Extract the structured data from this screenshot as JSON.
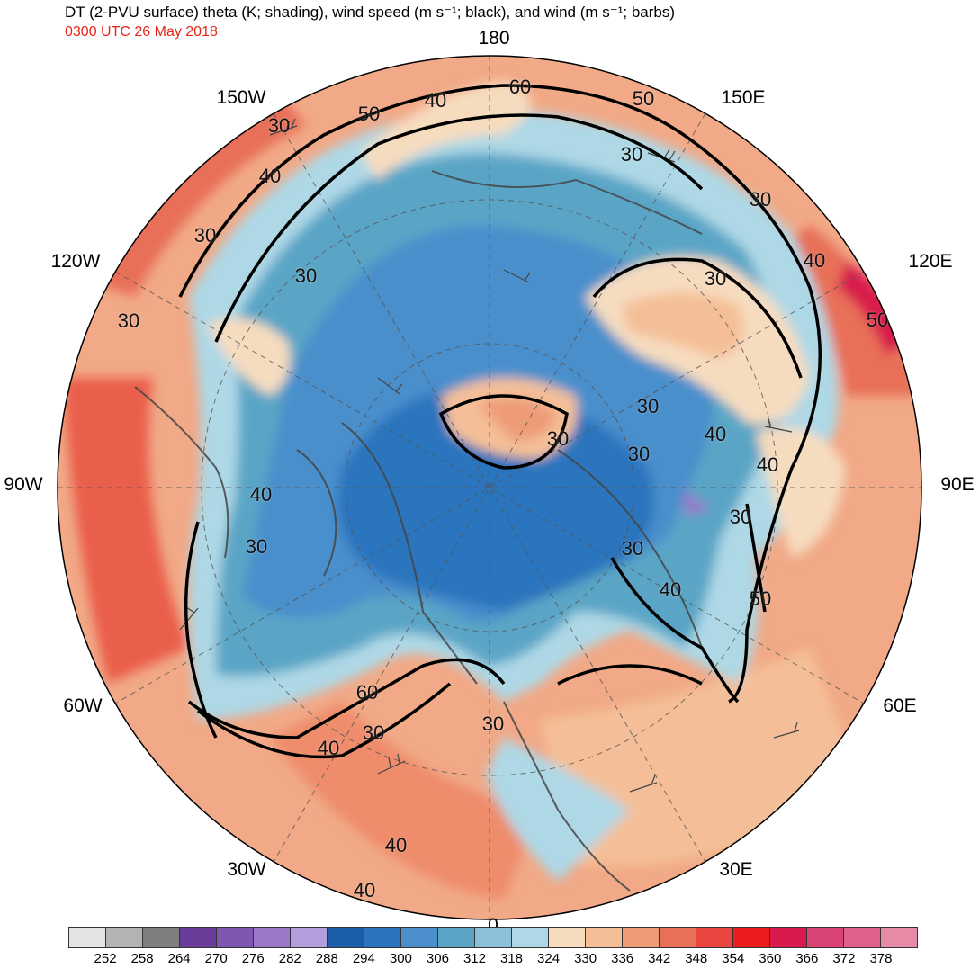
{
  "header": {
    "title": "DT (2-PVU surface) theta (K; shading), wind speed (m s⁻¹; black), and wind (m s⁻¹; barbs)",
    "subtitle": "0300 UTC 26 May 2018",
    "subtitle_color": "#e8261a"
  },
  "longitude_labels": [
    "180",
    "150E",
    "120E",
    "90E",
    "60E",
    "30E",
    "0",
    "30W",
    "60W",
    "90W",
    "120W",
    "150W"
  ],
  "contour_labels": [
    "60",
    "50",
    "40",
    "30",
    "30",
    "40",
    "30",
    "50",
    "30",
    "40",
    "30",
    "30",
    "40",
    "30",
    "30",
    "50",
    "40",
    "30",
    "40",
    "40",
    "30",
    "60",
    "30",
    "40",
    "30",
    "30",
    "40",
    "40",
    "50",
    "30",
    "30"
  ],
  "colorbar": {
    "colors": [
      "#e3e3e3",
      "#b3b3b3",
      "#7f7f7f",
      "#6a3d9a",
      "#7e57b1",
      "#9a78c8",
      "#b39ddb",
      "#1b5fa8",
      "#2a75bd",
      "#4a8fcc",
      "#5aa5c6",
      "#8cc0d8",
      "#aed8e6",
      "#f6dcbf",
      "#f4bf98",
      "#ee9c78",
      "#e87058",
      "#ea4540",
      "#ec1c1c",
      "#d81a4c",
      "#d94475",
      "#e0618d",
      "#e68aa5"
    ],
    "tick_labels": [
      "252",
      "258",
      "264",
      "270",
      "276",
      "282",
      "288",
      "294",
      "300",
      "306",
      "312",
      "318",
      "324",
      "330",
      "336",
      "342",
      "348",
      "354",
      "360",
      "366",
      "372",
      "378"
    ]
  }
}
